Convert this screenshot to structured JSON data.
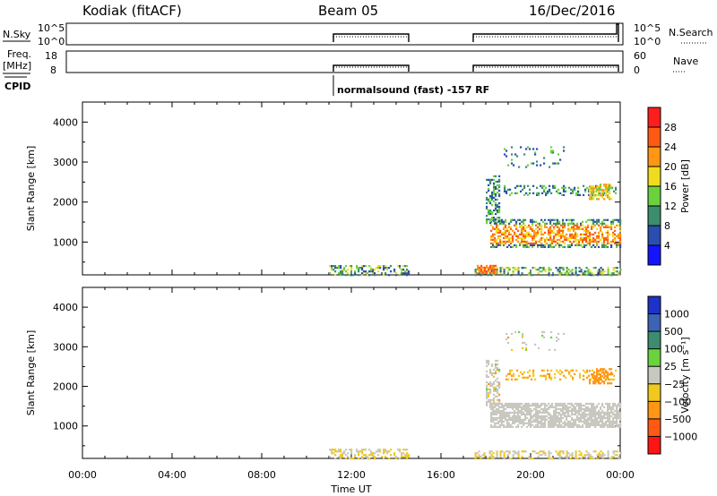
{
  "header": {
    "station": "Kodiak (fitACF)",
    "beam": "Beam 05",
    "date": "16/Dec/2016"
  },
  "strip_labels": {
    "nsky": "N.Sky",
    "freq": "Freq.",
    "mhz": "[MHz]",
    "cpid": "CPID",
    "nsearch": "N.Search",
    "nave": "Nave",
    "nsky_top": "10^5",
    "nsky_bot": "10^0",
    "nsearch_top": "10^5",
    "nsearch_bot": "10^0",
    "freq_top": "18",
    "freq_bot": "8",
    "nave_top": "60",
    "nave_bot": "0"
  },
  "cpid_text": "normalsound (fast) -157 RF",
  "chart_data": [
    {
      "type": "heatmap",
      "name": "power-panel",
      "ylabel": "Slant Range [km]",
      "yticks": [
        1000,
        2000,
        3000,
        4000
      ],
      "ylim": [
        180,
        4500
      ],
      "xlim": [
        0,
        24
      ],
      "colorbar_label": "Power [dB]",
      "colorbar_ticks": [
        "4",
        "8",
        "12",
        "16",
        "20",
        "24",
        "28"
      ],
      "colors": [
        "#1414ff",
        "#2a4db0",
        "#3c8c6e",
        "#6ad23c",
        "#f0dc1e",
        "#ff9614",
        "#ff5a14",
        "#ff1e1e"
      ]
    },
    {
      "type": "heatmap",
      "name": "velocity-panel",
      "ylabel": "Slant Range [km]",
      "yticks": [
        1000,
        2000,
        3000,
        4000
      ],
      "ylim": [
        180,
        4500
      ],
      "xlim": [
        0,
        24
      ],
      "xticks": [
        "00:00",
        "04:00",
        "08:00",
        "12:00",
        "16:00",
        "20:00",
        "00:00"
      ],
      "xlabel": "Time UT",
      "colorbar_label": "Velocity [m s⁻¹]",
      "colorbar_ticks": [
        "1000",
        "500",
        "100",
        "25",
        "−25",
        "−100",
        "−500",
        "−1000"
      ],
      "colors": [
        "#1e32c8",
        "#3c64b4",
        "#3c8c6e",
        "#6ad23c",
        "#c8c8c0",
        "#f0c81e",
        "#ff9614",
        "#ff5a14",
        "#ff1414"
      ]
    }
  ]
}
